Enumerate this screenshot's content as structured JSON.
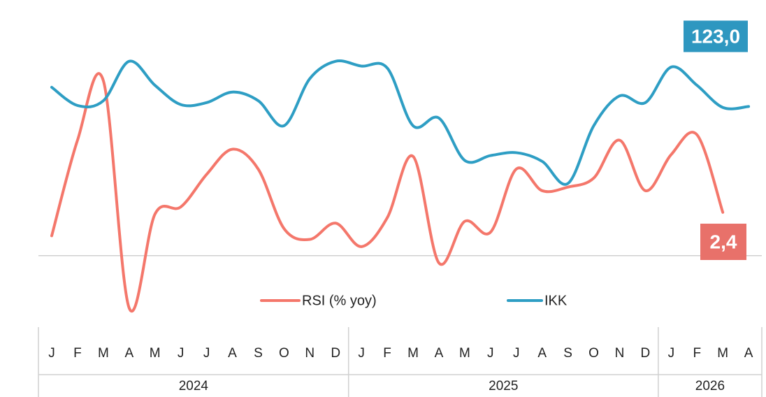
{
  "chart_data": {
    "type": "line",
    "categories": [
      "J",
      "F",
      "M",
      "A",
      "M",
      "J",
      "J",
      "A",
      "S",
      "O",
      "N",
      "D",
      "J",
      "F",
      "M",
      "A",
      "M",
      "J",
      "J",
      "A",
      "S",
      "O",
      "N",
      "D",
      "J",
      "F",
      "M",
      "A"
    ],
    "groups": [
      {
        "label": "2024",
        "span": 12
      },
      {
        "label": "2025",
        "span": 12
      },
      {
        "label": "2026",
        "span": 4
      }
    ],
    "series": [
      {
        "name": "RSI (% yoy)",
        "color": "#f4776b",
        "label_color": "#e8716a",
        "values": [
          1.1,
          6.4,
          9.7,
          -2.9,
          2.3,
          2.7,
          4.5,
          5.9,
          4.8,
          1.5,
          0.9,
          1.8,
          0.5,
          2.1,
          5.5,
          -0.4,
          1.9,
          1.3,
          4.8,
          3.6,
          3.8,
          4.3,
          6.4,
          3.6,
          5.6,
          6.7,
          2.4,
          null
        ],
        "value_labels": [
          null,
          null,
          null,
          null,
          null,
          null,
          null,
          null,
          null,
          null,
          null,
          null,
          null,
          null,
          null,
          null,
          null,
          null,
          null,
          null,
          null,
          null,
          null,
          null,
          null,
          null,
          "2,4",
          null
        ]
      },
      {
        "name": "IKK",
        "color": "#2e9ec4",
        "label_color": "#2e97c0",
        "axis": "y2",
        "values": [
          125.0,
          123.1,
          123.6,
          127.7,
          125.2,
          123.2,
          123.4,
          124.5,
          123.6,
          121.0,
          125.9,
          127.7,
          127.2,
          127.0,
          121.0,
          121.8,
          117.4,
          117.9,
          118.2,
          117.3,
          115.0,
          121.0,
          124.1,
          123.4,
          127.1,
          125.2,
          122.9,
          123.0
        ],
        "value_labels": [
          null,
          null,
          null,
          null,
          null,
          null,
          null,
          null,
          null,
          null,
          null,
          null,
          null,
          null,
          null,
          null,
          null,
          null,
          null,
          null,
          null,
          null,
          null,
          null,
          null,
          null,
          null,
          "123,0"
        ]
      }
    ],
    "ylim": [
      -4,
      12
    ],
    "yticks": [
      0
    ],
    "grid": true,
    "y2lim": [
      100,
      130
    ]
  }
}
